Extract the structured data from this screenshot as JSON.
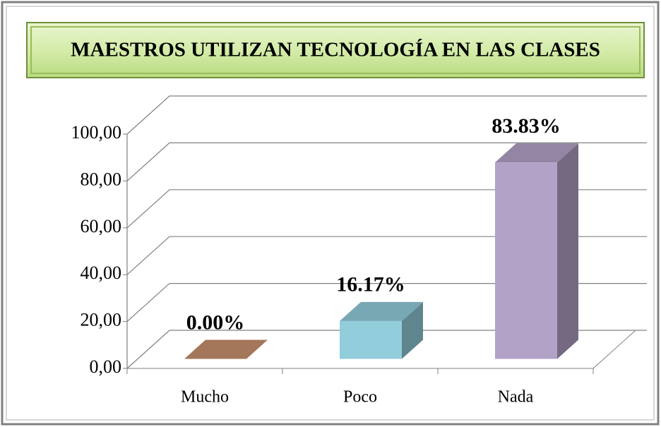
{
  "chart_data": {
    "type": "bar3d",
    "title": "MAESTROS UTILIZAN TECNOLOGÍA EN LAS CLASES",
    "categories": [
      "Mucho",
      "Poco",
      "Nada"
    ],
    "values": [
      0,
      16.17,
      83.83
    ],
    "value_labels": [
      "0.00%",
      "16.17%",
      "83.83%"
    ],
    "colors": [
      "#c8906e",
      "#92cddc",
      "#b3a2c7"
    ],
    "ylim": [
      0,
      100
    ],
    "yticks": [
      {
        "value": 0,
        "label": "0,00"
      },
      {
        "value": 20,
        "label": "20,00"
      },
      {
        "value": 40,
        "label": "40,00"
      },
      {
        "value": 60,
        "label": "60,00"
      },
      {
        "value": 80,
        "label": "80,00"
      },
      {
        "value": 100,
        "label": "100,00"
      }
    ],
    "grid": true
  }
}
